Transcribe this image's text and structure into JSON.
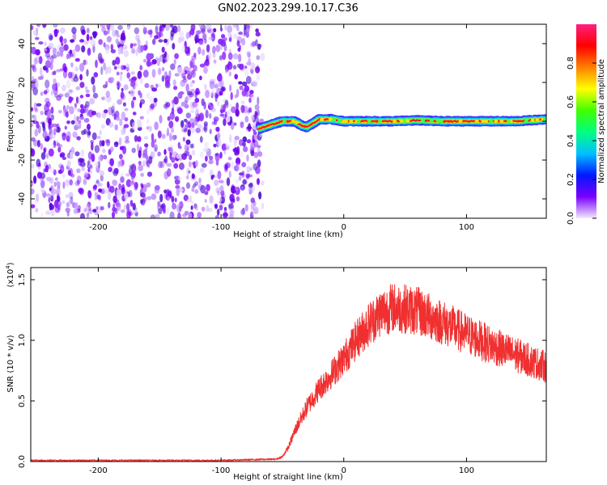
{
  "page": {
    "title": "GN02.2023.299.10.17.C36"
  },
  "chart_data": [
    {
      "type": "heatmap",
      "title": "GN02.2023.299.10.17.C36",
      "xlabel": "Height of straight line (km)",
      "ylabel": "Frequency (Hz)",
      "xlim": [
        -255,
        165
      ],
      "ylim": [
        -50,
        50
      ],
      "xticks": [
        -200,
        -100,
        0,
        100
      ],
      "xtick_labels": [
        "-200",
        "-100",
        "0",
        "100"
      ],
      "yticks": [
        -40,
        -20,
        0,
        20,
        40
      ],
      "ytick_labels": [
        "-40",
        "-20",
        "0",
        "20",
        "40"
      ],
      "noise_region_x": [
        -255,
        -70
      ],
      "signal_start_x": -70,
      "signal_trace": {
        "x": [
          -70,
          -60,
          -50,
          -40,
          -35,
          -30,
          -25,
          -20,
          -10,
          0,
          20,
          40,
          60,
          80,
          100,
          120,
          140,
          165
        ],
        "freq": [
          -4,
          -2,
          0,
          0,
          -2,
          -3,
          -1,
          1,
          1,
          0,
          0,
          0,
          0.5,
          0,
          0,
          0,
          0,
          1
        ]
      },
      "colorbar": {
        "label": "Normalized spectral amplitude",
        "range": [
          0.0,
          1.0
        ],
        "ticks": [
          0.0,
          0.2,
          0.4,
          0.6,
          0.8
        ],
        "tick_labels": [
          "0.0",
          "0.2",
          "0.4",
          "0.6",
          "0.8"
        ],
        "colors": [
          "#f1e8ff",
          "#7a00ff",
          "#0018ff",
          "#00c0ff",
          "#00ff80",
          "#40ff00",
          "#ffff00",
          "#ff8000",
          "#ff0000",
          "#ff2080"
        ]
      },
      "palette": {
        "noise": "#7a10ff",
        "line_core": "#ff1a1a"
      }
    },
    {
      "type": "line",
      "xlabel": "Height of straight line (km)",
      "ylabel": "SNR (10 * v/v)",
      "scale_label": "(x10",
      "scale_exponent": "4",
      "scale_close": ")",
      "xlim": [
        -255,
        165
      ],
      "ylim": [
        0,
        1.6
      ],
      "xticks": [
        -200,
        -100,
        0,
        100
      ],
      "xtick_labels": [
        "-200",
        "-100",
        "0",
        "100"
      ],
      "yticks": [
        0.0,
        0.5,
        1.0,
        1.5
      ],
      "ytick_labels": [
        "0.0",
        "0.5",
        "1.0",
        "1.5"
      ],
      "series": [
        {
          "name": "SNR",
          "color": "#f03030",
          "x": [
            -255,
            -100,
            -55,
            -50,
            -45,
            -40,
            -30,
            -20,
            -10,
            0,
            10,
            20,
            30,
            40,
            50,
            60,
            80,
            100,
            120,
            140,
            165
          ],
          "y": [
            0.01,
            0.01,
            0.02,
            0.04,
            0.12,
            0.25,
            0.45,
            0.6,
            0.72,
            0.85,
            1.0,
            1.13,
            1.23,
            1.27,
            1.26,
            1.24,
            1.15,
            1.05,
            0.96,
            0.88,
            0.78
          ]
        }
      ]
    }
  ]
}
